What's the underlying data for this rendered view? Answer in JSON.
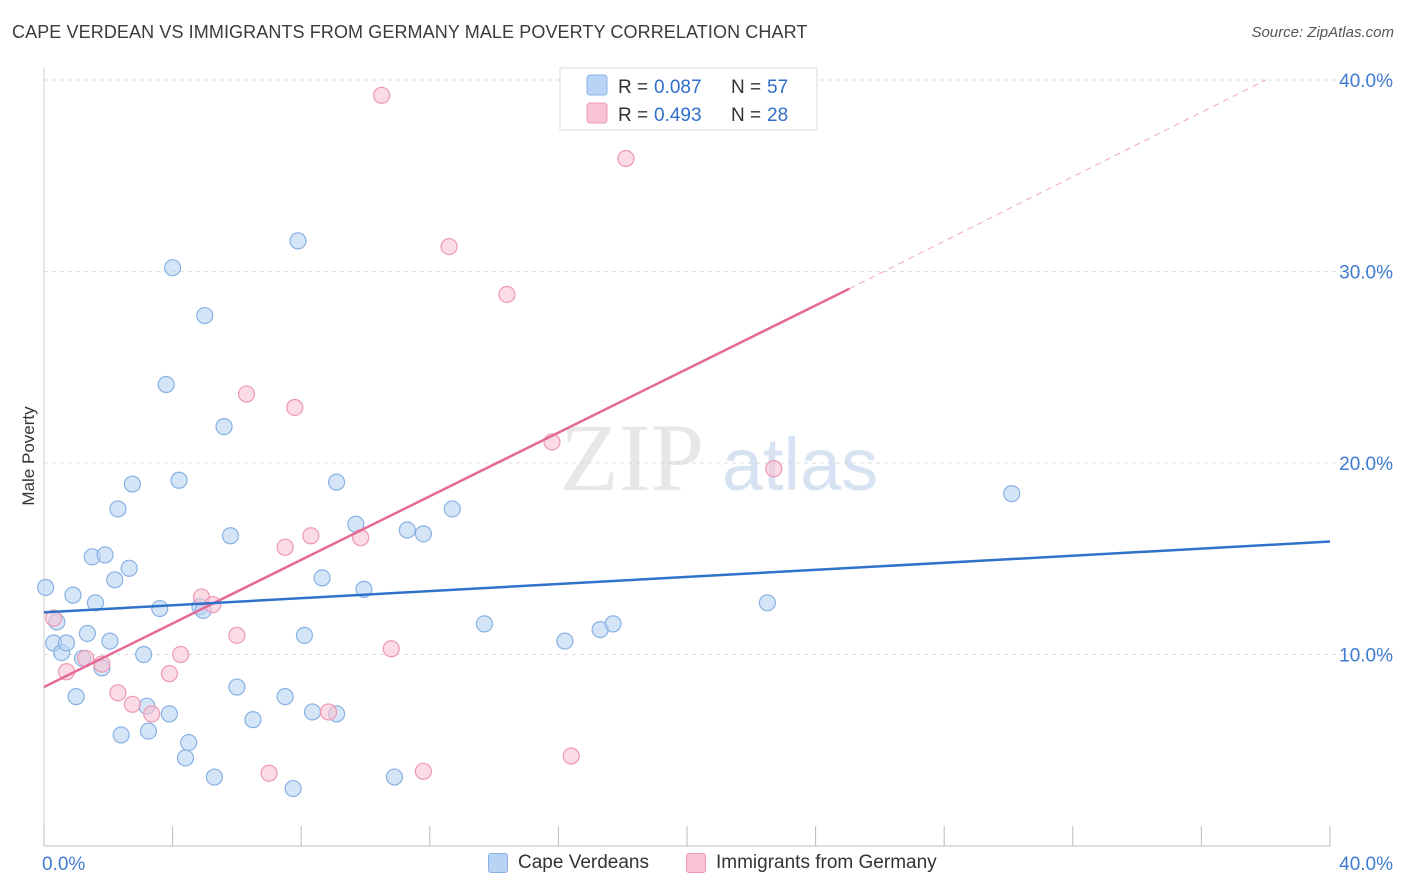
{
  "header": {
    "title": "CAPE VERDEAN VS IMMIGRANTS FROM GERMANY MALE POVERTY CORRELATION CHART",
    "source": "Source: ZipAtlas.com"
  },
  "watermark": {
    "zip": "ZIP",
    "atlas": "atlas"
  },
  "colors": {
    "blue_fill": "#b8d3f4",
    "blue_stroke": "#88b1e3",
    "blue_line": "#2f72c9",
    "pink_fill": "#f9c3d3",
    "pink_stroke": "#ee98b4",
    "pink_line": "#e46a96",
    "tick_label": "#3f7bd0",
    "grid": "#dcdcdc"
  },
  "chart_data": {
    "type": "scatter",
    "ylabel": "Male Poverty",
    "xlim": [
      0,
      40
    ],
    "ylim": [
      0,
      40
    ],
    "x_tick_labels": [
      {
        "value": 0,
        "label": "0.0%"
      },
      {
        "value": 40,
        "label": "40.0%"
      }
    ],
    "y_tick_labels": [
      {
        "value": 10,
        "label": "10.0%"
      },
      {
        "value": 20,
        "label": "20.0%"
      },
      {
        "value": 30,
        "label": "30.0%"
      },
      {
        "value": 40,
        "label": "40.0%"
      }
    ],
    "legend": {
      "rows": [
        {
          "r_label": "R = ",
          "r_value": "0.087",
          "n_label": "N = ",
          "n_value": "57"
        },
        {
          "r_label": "R = ",
          "r_value": "0.493",
          "n_label": "N = ",
          "n_value": "28"
        }
      ]
    },
    "series": [
      {
        "name": "Cape Verdeans",
        "color": "blue",
        "trend": {
          "x0": 0,
          "y0": 12.2,
          "x1": 40,
          "y1": 15.9
        },
        "points": [
          [
            0.05,
            13.5
          ],
          [
            0.3,
            10.6
          ],
          [
            0.4,
            11.7
          ],
          [
            0.55,
            10.1
          ],
          [
            0.7,
            10.6
          ],
          [
            0.9,
            13.1
          ],
          [
            1.0,
            7.8
          ],
          [
            1.2,
            9.8
          ],
          [
            1.35,
            11.1
          ],
          [
            1.5,
            15.1
          ],
          [
            1.6,
            12.7
          ],
          [
            1.8,
            9.3
          ],
          [
            1.9,
            15.2
          ],
          [
            2.05,
            10.7
          ],
          [
            2.2,
            13.9
          ],
          [
            2.3,
            17.6
          ],
          [
            2.4,
            5.8
          ],
          [
            2.65,
            14.5
          ],
          [
            2.75,
            18.9
          ],
          [
            3.1,
            10.0
          ],
          [
            3.2,
            7.3
          ],
          [
            3.25,
            6.0
          ],
          [
            3.6,
            12.4
          ],
          [
            3.8,
            24.1
          ],
          [
            3.9,
            6.9
          ],
          [
            4.0,
            30.2
          ],
          [
            4.2,
            19.1
          ],
          [
            4.4,
            4.6
          ],
          [
            4.5,
            5.4
          ],
          [
            4.85,
            12.5
          ],
          [
            4.95,
            12.3
          ],
          [
            5.0,
            27.7
          ],
          [
            5.3,
            3.6
          ],
          [
            5.6,
            21.9
          ],
          [
            5.8,
            16.2
          ],
          [
            6.0,
            8.3
          ],
          [
            6.5,
            6.6
          ],
          [
            7.5,
            7.8
          ],
          [
            7.75,
            3.0
          ],
          [
            7.9,
            31.6
          ],
          [
            8.1,
            11.0
          ],
          [
            8.35,
            7.0
          ],
          [
            8.65,
            14.0
          ],
          [
            9.1,
            6.9
          ],
          [
            9.1,
            19.0
          ],
          [
            9.7,
            16.8
          ],
          [
            9.95,
            13.4
          ],
          [
            10.9,
            3.6
          ],
          [
            11.3,
            16.5
          ],
          [
            11.8,
            16.3
          ],
          [
            12.7,
            17.6
          ],
          [
            13.7,
            11.6
          ],
          [
            16.2,
            10.7
          ],
          [
            17.3,
            11.3
          ],
          [
            17.7,
            11.6
          ],
          [
            22.5,
            12.7
          ],
          [
            30.1,
            18.4
          ]
        ]
      },
      {
        "name": "Immigrants from Germany",
        "color": "pink",
        "trend": {
          "x0": 0,
          "y0": 8.3,
          "x1": 25.05,
          "y1": 29.1,
          "dash_x1": 38.0,
          "dash_y1": 40.0
        },
        "points": [
          [
            0.3,
            11.9
          ],
          [
            0.7,
            9.1
          ],
          [
            1.3,
            9.8
          ],
          [
            1.8,
            9.5
          ],
          [
            2.3,
            8.0
          ],
          [
            2.75,
            7.4
          ],
          [
            3.35,
            6.9
          ],
          [
            3.9,
            9.0
          ],
          [
            4.25,
            10.0
          ],
          [
            4.9,
            13.0
          ],
          [
            5.25,
            12.6
          ],
          [
            6.0,
            11.0
          ],
          [
            6.3,
            23.6
          ],
          [
            7.0,
            3.8
          ],
          [
            7.5,
            15.6
          ],
          [
            7.8,
            22.9
          ],
          [
            8.3,
            16.2
          ],
          [
            8.85,
            7.0
          ],
          [
            9.85,
            16.1
          ],
          [
            10.5,
            39.2
          ],
          [
            10.8,
            10.3
          ],
          [
            11.8,
            3.9
          ],
          [
            12.6,
            31.3
          ],
          [
            14.4,
            28.8
          ],
          [
            15.8,
            21.1
          ],
          [
            16.4,
            4.7
          ],
          [
            18.1,
            35.9
          ],
          [
            22.7,
            19.7
          ]
        ]
      }
    ]
  },
  "bottom_legend": [
    "Cape Verdeans",
    "Immigrants from Germany"
  ]
}
